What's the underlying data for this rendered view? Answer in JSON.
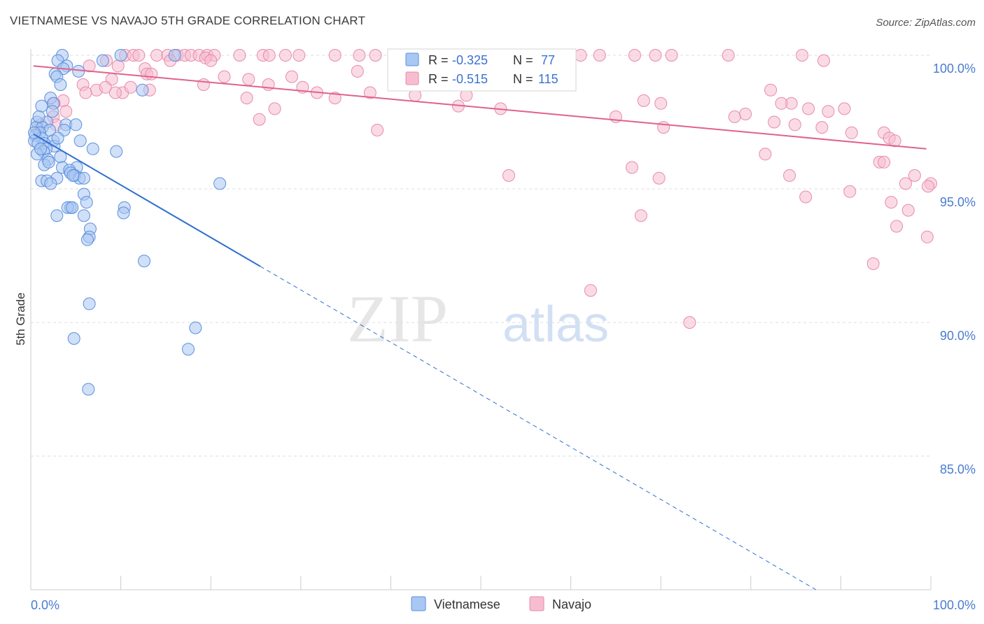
{
  "title": "VIETNAMESE VS NAVAJO 5TH GRADE CORRELATION CHART",
  "source": "Source: ZipAtlas.com",
  "watermark": {
    "zip": "ZIP",
    "atlas": "atlas"
  },
  "colors": {
    "vietnamese_fill": "#a9c7f3",
    "vietnamese_stroke": "#5b8fdc",
    "vietnamese_line": "#2f6fd1",
    "navajo_fill": "#f6bdd0",
    "navajo_stroke": "#e88aab",
    "navajo_line": "#e0628d",
    "tick_label": "#4a7bd0",
    "grid": "#dddddd"
  },
  "legend_box": {
    "rows": [
      {
        "r_label": "R = ",
        "r_value": "-0.325",
        "n_label": "N = ",
        "n_value": "77"
      },
      {
        "r_label": "R = ",
        "r_value": "-0.515",
        "n_label": "N = ",
        "n_value": "115"
      }
    ]
  },
  "chart_data": {
    "type": "scatter",
    "title": "VIETNAMESE VS NAVAJO 5TH GRADE CORRELATION CHART",
    "xlabel": "",
    "ylabel": "5th Grade",
    "xlim": [
      0,
      100
    ],
    "ylim": [
      80.0,
      100.5
    ],
    "x_tick_labels": [
      "0.0%",
      "100.0%"
    ],
    "y_ticks": [
      85,
      90,
      95,
      100
    ],
    "y_tick_labels": [
      "85.0%",
      "90.0%",
      "95.0%",
      "100.0%"
    ],
    "legend": [
      "Vietnamese",
      "Navajo"
    ],
    "series": [
      {
        "name": "Vietnamese",
        "r": -0.325,
        "n": 77,
        "trend": {
          "x0": 0.3,
          "y0": 97.05,
          "x1": 25.5,
          "y1": 92.1,
          "dash_x1": 100,
          "dash_y1": 77.5
        },
        "points": [
          [
            3.5,
            100.0
          ],
          [
            10,
            100.0
          ],
          [
            16,
            100.0
          ],
          [
            8,
            99.8
          ],
          [
            3,
            99.8
          ],
          [
            4,
            99.6
          ],
          [
            3.6,
            99.5
          ],
          [
            5.3,
            99.4
          ],
          [
            2.7,
            99.3
          ],
          [
            2.9,
            99.2
          ],
          [
            3.3,
            98.9
          ],
          [
            12.4,
            98.7
          ],
          [
            2.2,
            98.4
          ],
          [
            2.5,
            98.2
          ],
          [
            1.2,
            98.1
          ],
          [
            2.4,
            97.9
          ],
          [
            0.7,
            97.5
          ],
          [
            1.8,
            97.5
          ],
          [
            3.9,
            97.4
          ],
          [
            5,
            97.4
          ],
          [
            0.6,
            97.3
          ],
          [
            1.3,
            97.3
          ],
          [
            2.1,
            97.2
          ],
          [
            3.7,
            97.2
          ],
          [
            1.0,
            97.1
          ],
          [
            0.5,
            97.0
          ],
          [
            1.2,
            96.9
          ],
          [
            0.4,
            96.8
          ],
          [
            2.5,
            96.8
          ],
          [
            1.5,
            96.7
          ],
          [
            5.5,
            96.8
          ],
          [
            0.8,
            96.7
          ],
          [
            2.6,
            96.6
          ],
          [
            1.7,
            96.5
          ],
          [
            1.4,
            96.4
          ],
          [
            6.9,
            96.5
          ],
          [
            9.5,
            96.4
          ],
          [
            0.7,
            96.3
          ],
          [
            3.3,
            96.2
          ],
          [
            1.9,
            96.1
          ],
          [
            1.5,
            95.9
          ],
          [
            3.5,
            95.8
          ],
          [
            5.1,
            95.8
          ],
          [
            4.3,
            95.7
          ],
          [
            4.4,
            95.6
          ],
          [
            4.9,
            95.5
          ],
          [
            5.4,
            95.4
          ],
          [
            5.9,
            95.4
          ],
          [
            2.9,
            95.4
          ],
          [
            1.2,
            95.3
          ],
          [
            1.8,
            95.3
          ],
          [
            2.2,
            95.2
          ],
          [
            21,
            95.2
          ],
          [
            5.9,
            94.8
          ],
          [
            6.2,
            94.5
          ],
          [
            4.4,
            94.3
          ],
          [
            4.1,
            94.3
          ],
          [
            4.6,
            94.3
          ],
          [
            10.4,
            94.3
          ],
          [
            10.3,
            94.1
          ],
          [
            2.9,
            94.0
          ],
          [
            5.9,
            94.0
          ],
          [
            6.6,
            93.5
          ],
          [
            6.5,
            93.2
          ],
          [
            6.3,
            93.1
          ],
          [
            12.6,
            92.3
          ],
          [
            6.5,
            90.7
          ],
          [
            18.3,
            89.8
          ],
          [
            4.8,
            89.4
          ],
          [
            17.5,
            89.0
          ],
          [
            6.4,
            87.5
          ],
          [
            0.4,
            97.1
          ],
          [
            3.0,
            96.9
          ],
          [
            1.1,
            96.5
          ],
          [
            2.0,
            96.0
          ],
          [
            0.9,
            97.7
          ],
          [
            4.7,
            95.5
          ]
        ]
      },
      {
        "name": "Navajo",
        "r": -0.515,
        "n": 115,
        "trend": {
          "x0": 0.3,
          "y0": 99.6,
          "x1": 99.5,
          "y1": 96.5
        },
        "points": [
          [
            10.5,
            100.0
          ],
          [
            11.4,
            100.0
          ],
          [
            12,
            100.0
          ],
          [
            14,
            100.0
          ],
          [
            15.2,
            100.0
          ],
          [
            16.3,
            100.0
          ],
          [
            17.1,
            100.0
          ],
          [
            17.8,
            100.0
          ],
          [
            18.7,
            100.0
          ],
          [
            19.6,
            100.0
          ],
          [
            20.4,
            100.0
          ],
          [
            23.2,
            100.0
          ],
          [
            25.8,
            100.0
          ],
          [
            26.5,
            100.0
          ],
          [
            28.3,
            100.0
          ],
          [
            29.8,
            100.0
          ],
          [
            33.8,
            100.0
          ],
          [
            36.5,
            100.0
          ],
          [
            38.3,
            100.0
          ],
          [
            40.8,
            100.0
          ],
          [
            44.1,
            100.0
          ],
          [
            45.2,
            100.0
          ],
          [
            47.3,
            100.0
          ],
          [
            49.3,
            100.0
          ],
          [
            51,
            100.0
          ],
          [
            54.2,
            100.0
          ],
          [
            56.3,
            100.0
          ],
          [
            59.7,
            100.0
          ],
          [
            61.1,
            100.0
          ],
          [
            63.2,
            100.0
          ],
          [
            67.1,
            100.0
          ],
          [
            69.4,
            100.0
          ],
          [
            71.2,
            100.0
          ],
          [
            77.5,
            100.0
          ],
          [
            85.7,
            100.0
          ],
          [
            8.4,
            99.8
          ],
          [
            9.7,
            99.6
          ],
          [
            12.7,
            99.5
          ],
          [
            15.5,
            99.8
          ],
          [
            19.4,
            99.9
          ],
          [
            6.5,
            99.6
          ],
          [
            20,
            99.8
          ],
          [
            36.3,
            99.4
          ],
          [
            55.2,
            99.7
          ],
          [
            88.1,
            99.8
          ],
          [
            12.9,
            99.3
          ],
          [
            13.4,
            99.3
          ],
          [
            21.5,
            99.2
          ],
          [
            24.2,
            99.1
          ],
          [
            29,
            99.2
          ],
          [
            9,
            99.1
          ],
          [
            5.8,
            98.9
          ],
          [
            19.2,
            98.9
          ],
          [
            26.4,
            98.9
          ],
          [
            30.2,
            98.8
          ],
          [
            37.7,
            98.6
          ],
          [
            48.4,
            98.5
          ],
          [
            31.8,
            98.6
          ],
          [
            7.3,
            98.7
          ],
          [
            8.3,
            98.8
          ],
          [
            10.2,
            98.6
          ],
          [
            11.1,
            98.8
          ],
          [
            13.2,
            98.7
          ],
          [
            24,
            98.4
          ],
          [
            33.8,
            98.4
          ],
          [
            6.1,
            98.6
          ],
          [
            9.4,
            98.6
          ],
          [
            3.6,
            98.3
          ],
          [
            2.6,
            98.2
          ],
          [
            42.7,
            98.5
          ],
          [
            47.5,
            98.1
          ],
          [
            68.1,
            98.3
          ],
          [
            70,
            98.2
          ],
          [
            84.5,
            98.2
          ],
          [
            82.2,
            98.7
          ],
          [
            83.4,
            98.2
          ],
          [
            86.4,
            98.0
          ],
          [
            90.4,
            98.0
          ],
          [
            3.9,
            97.9
          ],
          [
            2.5,
            97.7
          ],
          [
            27.1,
            98.0
          ],
          [
            52.2,
            98.0
          ],
          [
            79.4,
            97.8
          ],
          [
            78.2,
            97.7
          ],
          [
            88.6,
            97.9
          ],
          [
            65,
            97.7
          ],
          [
            25.4,
            97.6
          ],
          [
            2.8,
            97.4
          ],
          [
            1.1,
            97.4
          ],
          [
            0.8,
            97.2
          ],
          [
            38.5,
            97.2
          ],
          [
            70.3,
            97.3
          ],
          [
            82.6,
            97.5
          ],
          [
            84.9,
            97.4
          ],
          [
            87.9,
            97.3
          ],
          [
            91.2,
            97.1
          ],
          [
            94.8,
            97.1
          ],
          [
            95.4,
            96.9
          ],
          [
            96,
            96.8
          ],
          [
            81.6,
            96.3
          ],
          [
            94.3,
            96.0
          ],
          [
            94.8,
            96.0
          ],
          [
            98.2,
            95.5
          ],
          [
            100.0,
            95.2
          ],
          [
            53.1,
            95.5
          ],
          [
            66.8,
            95.8
          ],
          [
            69.8,
            95.4
          ],
          [
            84.3,
            95.5
          ],
          [
            97.2,
            95.2
          ],
          [
            99.7,
            95.1
          ],
          [
            86.1,
            94.7
          ],
          [
            91,
            94.9
          ],
          [
            95.6,
            94.5
          ],
          [
            97.5,
            94.2
          ],
          [
            67.8,
            94.0
          ],
          [
            96.2,
            93.6
          ],
          [
            99.6,
            93.2
          ],
          [
            93.6,
            92.2
          ],
          [
            62.2,
            91.2
          ],
          [
            73.2,
            90.0
          ]
        ]
      }
    ]
  }
}
